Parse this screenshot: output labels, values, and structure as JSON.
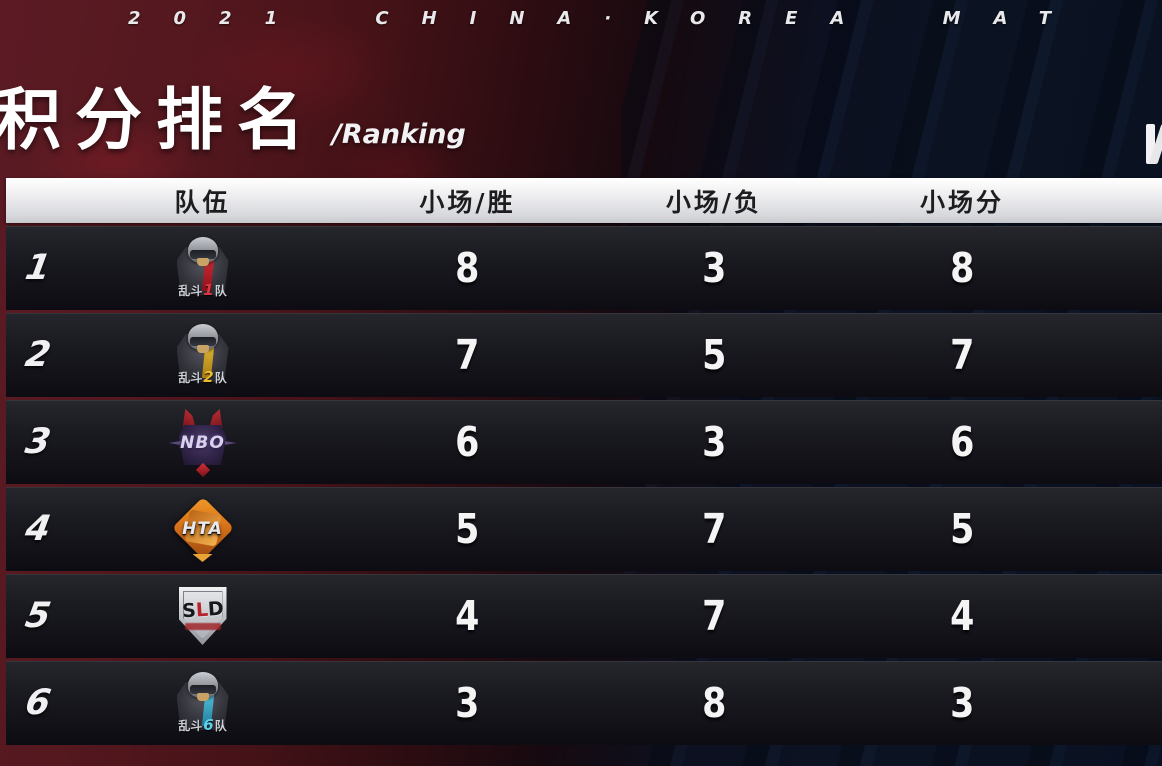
{
  "banner": {
    "text": "2021 CHINA·KOREA MAT"
  },
  "title": {
    "main": "积分排名",
    "sub": "/Ranking"
  },
  "table": {
    "headers": [
      "队伍",
      "小场/胜",
      "小场/负",
      "小场分"
    ],
    "rows": [
      {
        "rank": "1",
        "team_name": "乱斗1队",
        "logo_pre": "乱斗",
        "logo_digit": "1",
        "logo_post": "队",
        "wins": "8",
        "losses": "3",
        "points": "8"
      },
      {
        "rank": "2",
        "team_name": "乱斗2队",
        "logo_pre": "乱斗",
        "logo_digit": "2",
        "logo_post": "队",
        "wins": "7",
        "losses": "5",
        "points": "7"
      },
      {
        "rank": "3",
        "team_name": "NBO",
        "logo_label": "NBO",
        "wins": "6",
        "losses": "3",
        "points": "6"
      },
      {
        "rank": "4",
        "team_name": "HTA",
        "logo_label": "HTA",
        "wins": "5",
        "losses": "7",
        "points": "5"
      },
      {
        "rank": "5",
        "team_name": "SLD",
        "logo_s": "S",
        "logo_l": "L",
        "logo_d": "D",
        "wins": "4",
        "losses": "7",
        "points": "4"
      },
      {
        "rank": "6",
        "team_name": "乱斗6队",
        "logo_pre": "乱斗",
        "logo_digit": "6",
        "logo_post": "队",
        "wins": "3",
        "losses": "8",
        "points": "3"
      }
    ]
  },
  "colors": {
    "team1_accent": "#d5303a",
    "team2_accent": "#ecba2e",
    "team6_accent": "#5fd0ea",
    "banner_red": "#5c1b24",
    "banner_navy": "#0b1322",
    "header_bar": "#e9e9eb",
    "row_dark": "#17171d",
    "number_white": "#f4f4f5"
  }
}
